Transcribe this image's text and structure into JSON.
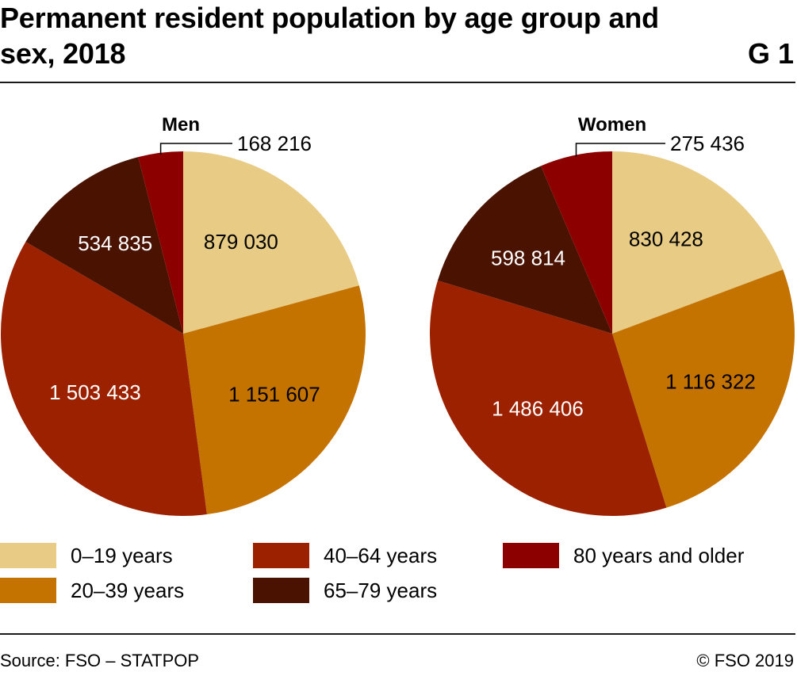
{
  "title": "Permanent resident population by age group and sex, 2018",
  "chart_id": "G 1",
  "source": "Source: FSO – STATPOP",
  "copyright": "© FSO 2019",
  "legend": [
    {
      "label": "0–19 years",
      "color": "#e8cb85"
    },
    {
      "label": "40–64 years",
      "color": "#9c2100"
    },
    {
      "label": "80 years and older",
      "color": "#8c0000"
    },
    {
      "label": "20–39 years",
      "color": "#c47300"
    },
    {
      "label": "65–79 years",
      "color": "#4a1200"
    }
  ],
  "chart_data": [
    {
      "type": "pie",
      "title": "Men",
      "categories": [
        "0–19 years",
        "20–39 years",
        "40–64 years",
        "65–79 years",
        "80 years and older"
      ],
      "values": [
        879030,
        1151607,
        1503433,
        534835,
        168216
      ],
      "value_labels": [
        "879 030",
        "1 151 607",
        "1 503 433",
        "534 835",
        "168 216"
      ],
      "colors": [
        "#e8cb85",
        "#c47300",
        "#9c2100",
        "#4a1200",
        "#8c0000"
      ]
    },
    {
      "type": "pie",
      "title": "Women",
      "categories": [
        "0–19 years",
        "20–39 years",
        "40–64 years",
        "65–79 years",
        "80 years and older"
      ],
      "values": [
        830428,
        1116322,
        1486406,
        598814,
        275436
      ],
      "value_labels": [
        "830 428",
        "1 116 322",
        "1 486 406",
        "598 814",
        "275 436"
      ],
      "colors": [
        "#e8cb85",
        "#c47300",
        "#9c2100",
        "#4a1200",
        "#8c0000"
      ]
    }
  ]
}
